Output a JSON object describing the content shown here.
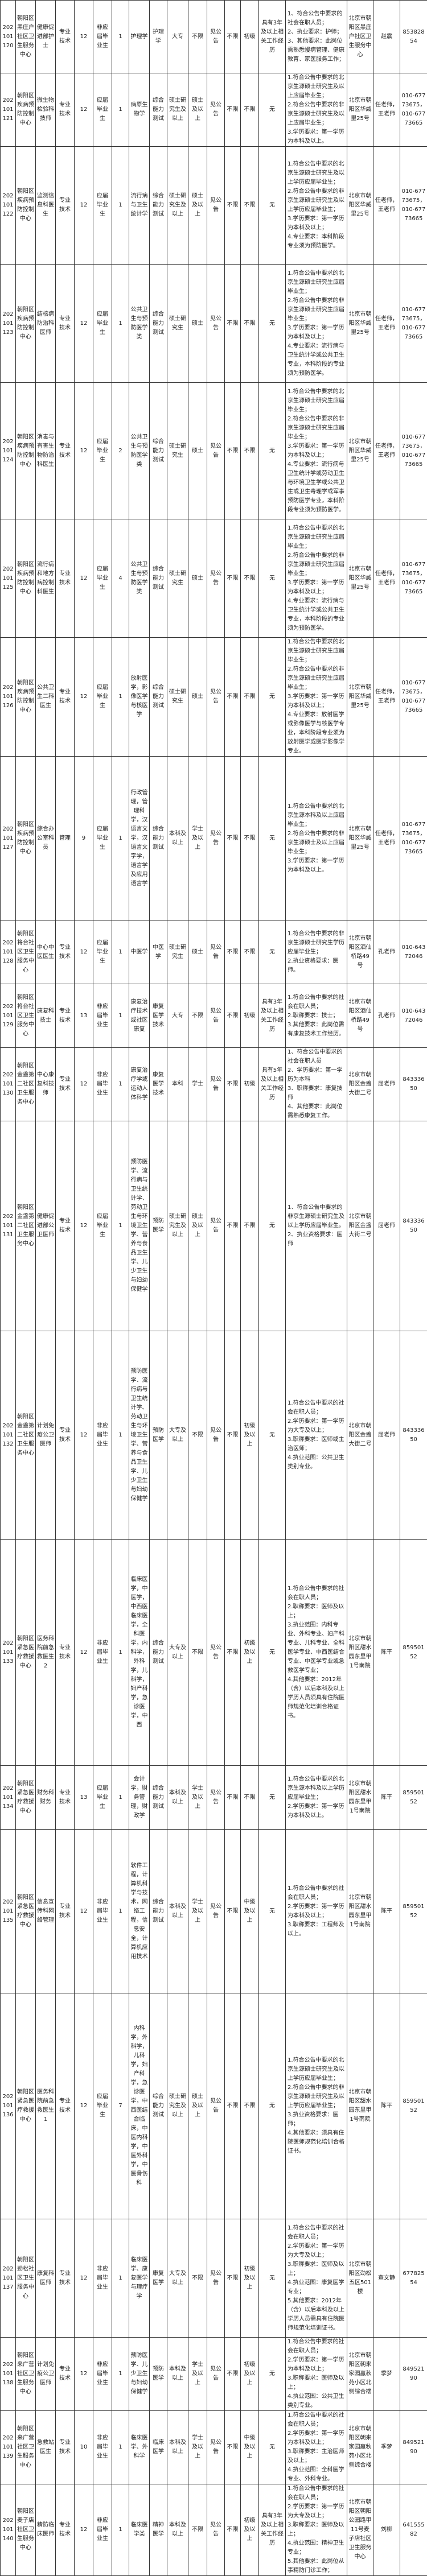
{
  "table": {
    "rows": [
      [
        "202101120",
        "朝阳区黑庄户社区卫生服务中心",
        "健康促进部护士",
        "专业技术",
        "12",
        "非应届毕业生",
        "1",
        "护理学",
        "护理学",
        "大专",
        "不限",
        "见公告",
        "不限",
        "初级",
        "具有3年及以上相关工作经历",
        "1、符合公告中要求的社会在职人员；\n2、执业要求：护师；\n3、其他要求：此岗位需熟悉慢病管理、健康教育、家医服务工作；",
        "北京市朝阳区黑庄户社区卫生服务中心",
        "赵震",
        "85382854"
      ],
      [
        "202101121",
        "朝阳区疾病预防控制中心",
        "微生物检验科技师",
        "专业技术",
        "12",
        "应届毕业生",
        "1",
        "病原生物学",
        "综合能力测试",
        "硕士研究生及以上",
        "硕士及以上",
        "见公告",
        "不限",
        "不限",
        "无",
        "1.符合公告中要求的北京生源硕士研究生及以上应届毕业生；\n2.符合公告中要求的非京生源硕士研究生及以上应届毕业生；\n3.学历要求：第一学历为本科及以上。",
        "北京市朝阳区华威里25号",
        "任老师，王老师",
        "010-67773675，010-67773665"
      ],
      [
        "202101122",
        "朝阳区疾病预防控制中心",
        "监测信息科医生",
        "专业技术",
        "12",
        "应届毕业生",
        "1",
        "流行病与卫生统计学",
        "综合能力测试",
        "硕士研究生及以上",
        "硕士及以上",
        "见公告",
        "不限",
        "不限",
        "无",
        "1.符合公告中要求的北京生源硕士研究生及以上学历应届毕业生；\n2.符合公告中要求的非京生源硕士研究生及以上学历应届毕业生；\n3.学历要求：第一学历为本科及以上；\n4.专业要求：本科阶段专业须为预防医学。",
        "北京市朝阳区华威里25号",
        "任老师，王老师",
        "010-67773675，010-67773665"
      ],
      [
        "202101123",
        "朝阳区疾病预防控制中心",
        "结核病防治科医师",
        "专业技术",
        "12",
        "应届毕业生",
        "1",
        "公共卫生与预防医学类",
        "综合能力测试",
        "硕士研究生",
        "硕士",
        "见公告",
        "不限",
        "不限",
        "无",
        "1.符合公告中要求的北京生源硕士研究生应届毕业生；\n2.符合公告中要求的非京生源硕士研究生应届毕业生；\n3.学历要求：第一学历为本科及以上；\n4.专业要求：流行病与卫生统计学或公共卫生专业，本科阶段的专业须为预防医学。",
        "北京市朝阳区华威里25号",
        "任老师，王老师",
        "010-67773675，010-67773665"
      ],
      [
        "202101124",
        "朝阳区疾病预防控制中心",
        "消毒与有害生物防治科医生",
        "专业技术",
        "12",
        "应届毕业生",
        "2",
        "公共卫生与预防医学类",
        "综合能力测试",
        "硕士研究生",
        "硕士",
        "见公告",
        "不限",
        "不限",
        "无",
        "1.符合公告中要求的北京生源硕士研究生应届毕业生；\n2.符合公告中要求的非京生源硕士研究生应届毕业生；\n3.学历要求：第一学历为本科及以上；\n4.专业要求：流行病与卫生统计学或劳动卫生与环境卫生学或公共卫生或卫生毒理学或军事预防医学专业，本科阶段专业须为预防医学。",
        "北京市朝阳区华威里25号",
        "任老师，王老师",
        "010-67773675，010-67773665"
      ],
      [
        "202101125",
        "朝阳区疾病预防控制中心",
        "流行病和地方病控制科医生",
        "专业技术",
        "12",
        "应届毕业生",
        "4",
        "公共卫生与预防医学类",
        "综合能力测试",
        "硕士研究生",
        "硕士",
        "见公告",
        "不限",
        "不限",
        "无",
        "1.符合公告中要求的北京生源硕士研究生应届毕业生；\n2.符合公告中要求的非京生源硕士研究生应届毕业生；\n3.学历要求：第一学历为本科及以上；\n4.专业要求：流行病与卫生统计学或公共卫生专业，本科阶段的专业须为预防医学。",
        "北京市朝阳区华威里25号",
        "任老师，王老师",
        "010-67773675，010-67773665"
      ],
      [
        "202101126",
        "朝阳区疾病预防控制中心",
        "公共卫生二科医生",
        "专业技术",
        "12",
        "应届毕业生",
        "1",
        "放射医学，影像医学与核医学",
        "综合能力测试",
        "硕士研究生",
        "硕士",
        "见公告",
        "不限",
        "不限",
        "无",
        "1.符合公告中要求的北京生源硕士研究生应届毕业生；\n2.符合公告中要求的非京生源硕士研究生应届毕业生；\n3.学历要求：第一学历为本科及以上；\n4.专业要求：放射医学或影像医学与核医学专业，本科阶段专业须为放射医学或医学影像学专业。",
        "北京市朝阳区华威里25号",
        "任老师，王老师",
        "010-67773675，010-67773665"
      ],
      [
        "202101127",
        "朝阳区疾病预防控制中心",
        "综合办公室科员",
        "管理",
        "9",
        "应届毕业生",
        "1",
        "行政管理，管理科学，汉语言文学，汉语言文字学，语言学及应用语言学",
        "综合能力测试",
        "本科及以上",
        "学士及以上",
        "见公告",
        "不限",
        "不限",
        "无",
        "1.符合公告中要求的北京生源本科及以上应届毕业生；\n2.符合公告中要求的非京生源硕士及以上应届毕业生；\n3.学历要求：第一学历为本科及以上。",
        "北京市朝阳区华威里25号",
        "任老师，王老师",
        "010-67773675，010-67773665"
      ],
      [
        "202101128",
        "朝阳区将台社区卫生服务中心",
        "中心中医医生",
        "专业技术",
        "12",
        "应届毕业生",
        "1",
        "中医学",
        "中医学",
        "硕士研究生",
        "硕士",
        "见公告",
        "不限",
        "不限",
        "无",
        "1.符合公告中要求的非京生源硕士研究生学历应届毕业生；\n2.执业资格要求：医师。",
        "北京市朝阳区酒仙桥路49号",
        "孔老师",
        "010-64372046"
      ],
      [
        "202101129",
        "朝阳区将台社区卫生服务中心",
        "康复科技士",
        "专业技术",
        "13",
        "非应届毕业生",
        "1",
        "康复治疗技术或社区康复",
        "康复医学技术",
        "大专",
        "不限",
        "见公告",
        "不限",
        "初级",
        "具有3年及以上相关工作经历",
        "1.符合公告中要求的社会在职人员；\n2.职称要求：技士；\n3.其他要求：此岗位需有康复技术工作经历。",
        "北京市朝阳区酒仙桥路49号",
        "孔老师",
        "010-64372046"
      ],
      [
        "202101130",
        "朝阳区金盏第二社区卫生服务中心",
        "中心康复科技师",
        "专业技术",
        "12",
        "非应届毕业生",
        "1",
        "康复治疗学或运动人体科学",
        "康复医学技术",
        "本科",
        "学士",
        "见公告",
        "不限",
        "初级",
        "具有5年及以上相关工作经历",
        "1、符合公告中要求的社会在职人员\n2、学历要求：第一学历为本科\n3、职称要求：康复技师\n4、其他要求：此岗位需熟悉康复工作。",
        "北京市朝阳区金盏大街二号",
        "屈老师",
        "84333650"
      ],
      [
        "202101131",
        "朝阳区金盏第二社区卫生服务中心",
        "健康促进部公卫医师",
        "专业技术",
        "12",
        "应届毕业生",
        "1",
        "预防医学、流行病与卫生统计学、劳动卫生与环境卫生学、营养与食品卫生学、儿少卫生与妇幼保健学",
        "预防医学",
        "硕士研究生及以上",
        "硕士及以上",
        "见公告",
        "不限",
        "不限",
        "无",
        "1、符合公告中要求的非京生源硕士研究生及以上学历应届毕业生。\n2、执业资格要求：医师",
        "北京市朝阳区金盏大街二号",
        "屈老师",
        "84333650"
      ],
      [
        "202101132",
        "朝阳区金盏第二社区卫生服务中心",
        "计划免疫公卫医师",
        "专业技术",
        "12",
        "非应届毕业生",
        "1",
        "预防医学、流行病与卫生统计学、劳动卫生与环境卫生学、营养与食品卫生学、儿少卫生与妇幼保健学",
        "预防医学",
        "大专及以上",
        "不限",
        "见公告",
        "不限",
        "初级及以上",
        "无",
        "1.符合公告中要求的社会在职人员；\n2.学历要求：第一学历为大专及以上；\n3.职称要求：医师或主治医师；\n4.执业范围：公共卫生类别专业。",
        "北京市朝阳区金盏大街二号",
        "屈老师",
        "84333650"
      ],
      [
        "202101133",
        "朝阳区紧急医疗救援中心",
        "医务科院前急救医生2",
        "专业技术",
        "12",
        "非应届毕业生",
        "1",
        "临床医学，中医学，中西医临床医学，全科医学，内科学，外科学，儿科学，妇产科学，急诊医学，中西",
        "综合能力测试",
        "大专及以上",
        "不限",
        "见公告",
        "不限",
        "初级及以上",
        "无",
        "1.符合公告中要求的社会在职人员；\n2.职称要求：医师及以上；\n3.执业范围：内科专业、外科专业、妇产科专业、儿科专业、全科医学专业、中西医结合专业、中医学专业或急救医学专业；\n4.其他要求：2012年（含）以后本科及以上学历人员须具有住院医师规范化培训合格证书。",
        "北京市朝阳区甜水园东里甲1号南院",
        "陈平",
        "85950152"
      ],
      [
        "202101134",
        "朝阳区紧急医疗救援中心",
        "财务科财务",
        "专业技术",
        "13",
        "应届毕业生",
        "1",
        "会计学，财务管理，财政学",
        "综合能力测试",
        "本科及以上",
        "学士及以上",
        "见公告",
        "不限",
        "不限",
        "无",
        "1.符合公告中要求的北京生源本科及以上学历应届毕业生；\n2.学历要求：第一学历为本科及以上。",
        "北京市朝阳区甜水园东里甲1号南院",
        "陈平",
        "85950152"
      ],
      [
        "202101135",
        "朝阳区紧急医疗救援中心",
        "信息宣传科网络管理",
        "专业技术",
        "12",
        "非应届毕业生",
        "1",
        "软件工程，计算机科学与技术，网络工程，信息安全，计算机应用技术",
        "综合能力测试",
        "本科及以上",
        "学士及以上",
        "见公告",
        "不限",
        "中级及以上",
        "无",
        "1.符合公告中要求的社会在职人员；\n2.学历要求：第一学历为本科及以上；\n3.职称要求：工程师及以上。",
        "北京市朝阳区甜水园东里甲1号南院",
        "陈平",
        "85950152"
      ],
      [
        "202101136",
        "朝阳区紧急医疗救援中心",
        "医务科院前急救医生1",
        "专业技术",
        "12",
        "应届毕业生",
        "7",
        "内科学，外科学，儿科学，妇产科学，急诊医学，中西医结合临床，中医内科学，中医外科学，中医骨伤科",
        "综合能力测试",
        "硕士研究生及以上",
        "硕士及以上",
        "见公告",
        "不限",
        "不限",
        "无",
        "1.符合公告中要求的北京生源硕士研究生及以上学历应届毕业生；\n2.符合公告中要求的非京生源硕士研究生及以上学历应届毕业生；\n3.执业资格要求：医师；\n4.其他要求：须具有住院医师规范化培训合格证书。",
        "北京市朝阳区甜水园东里甲1号南院",
        "陈平",
        "85950152"
      ],
      [
        "202101137",
        "朝阳区劲松社区卫生服务中心",
        "康复科医师",
        "专业技术",
        "12",
        "非应届毕业生",
        "1",
        "临床医学、康复医学与理疗学",
        "康复医学",
        "大专及以上",
        "不限",
        "见公告",
        "不限",
        "初级及以上",
        "无",
        "1.符合公告中要求的社会在职人员；\n2.学历要求：第一学历为大专及以上；\n3.职称要求：医师及以上；\n4.执业范围：康复医学专业；\n5.其他要求：2012年（含）以后本科及以上学历人员需具有住院医师规范化培训证书。",
        "北京市朝阳区劲松五区501楼",
        "查文静",
        "67782554"
      ],
      [
        "202101138",
        "朝阳区来广营社区卫生服务中心",
        "计划免疫公卫医师",
        "专业技术",
        "12",
        "非应届毕业生",
        "1",
        "预防医学、儿少卫生与妇幼保健学",
        "预防医学",
        "本科及以上",
        "学士及以上",
        "见公告",
        "不限",
        "初级及以上",
        "无",
        "1.符合公告中要求的社会在职人员；\n2.学历要求：第一学历为本科及以上；\n3.职称要求：医师及以上；\n4.执业范围：公共卫生类别专业。",
        "北京市朝阳区朝来家园赢秋苑小区北侧综合楼",
        "季梦",
        "84952190"
      ],
      [
        "202101139",
        "朝阳区来广营社区卫生服务中心",
        "急救站医生",
        "专业技术",
        "10",
        "非应届毕业生",
        "1",
        "临床医学、外科学",
        "临床医学",
        "本科及以上",
        "学士及以上",
        "见公告",
        "不限",
        "中级及以上",
        "无",
        "1.符合公告中要求的社会在职人员；\n2.学历要求：第一学历为本科及以上；\n3.职称要求：主治医师及以上；\n4.执业范围：全科医学专业、外科专业。",
        "北京市朝阳区朝来家园赢秋苑小区北侧综合楼",
        "季梦",
        "84952190"
      ],
      [
        "202101140",
        "朝阳区麦子店社区卫生服务中心",
        "精防临床医师",
        "专业技术",
        "12",
        "非应届毕业生",
        "1",
        "临床医学类",
        "精神医学",
        "本科及以上",
        "不限",
        "见公告",
        "不限",
        "初级及以上",
        "具有3年及以上相关工作经历",
        "1.符合公告中要求的社会在职人员；\n2.学历要求：第一学历为大专及以上；\n3.职称要求：医师及以上；\n4.执业范围：精神卫生专业；\n5.其他要求：此岗位从事精防门诊工作；",
        "北京市朝阳区朝阳公园路甲11号麦子店社区卫生服务中心",
        "刘柳",
        "64155582"
      ]
    ]
  }
}
